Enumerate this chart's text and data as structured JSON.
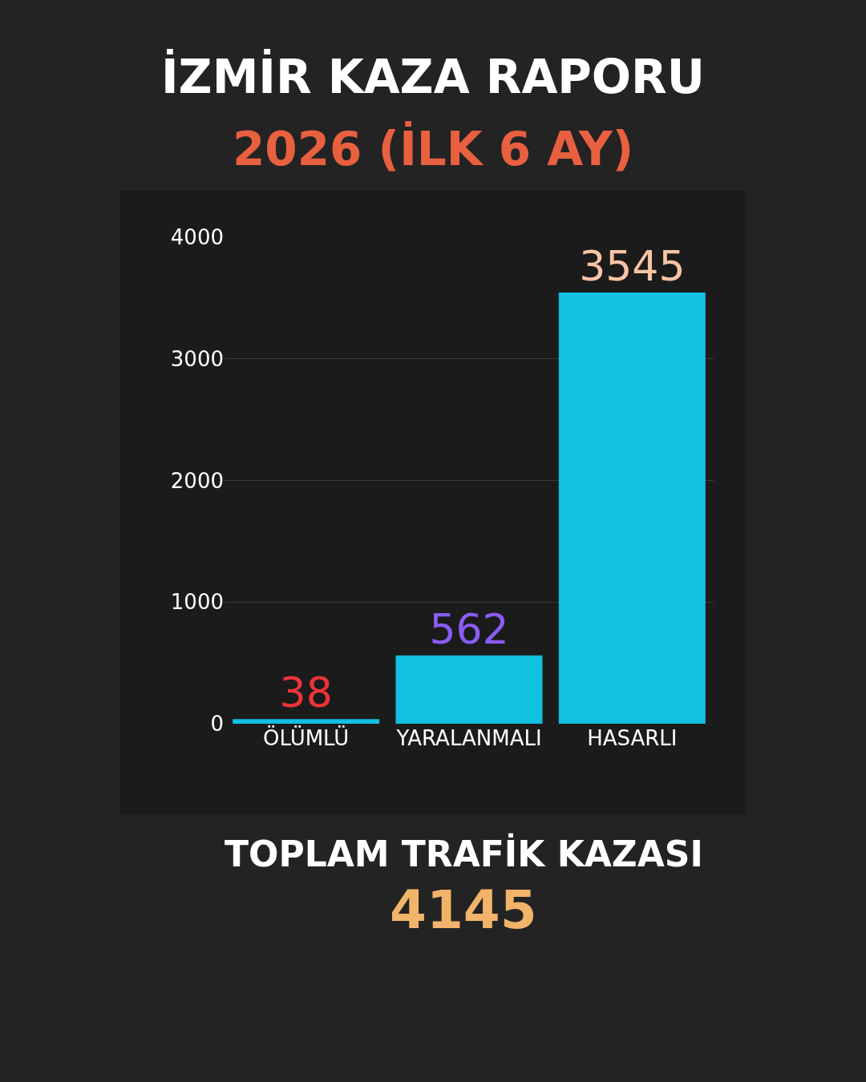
{
  "chart_data": {
    "type": "bar",
    "title": "İZMİR KAZA RAPORU",
    "subtitle": "2026 (İLK 6 AY)",
    "categories": [
      "ÖLÜMLÜ",
      "YARALANMALI",
      "HASARLI"
    ],
    "series": [
      {
        "color": "#12c0e0",
        "values": [
          38,
          562,
          3545
        ]
      }
    ],
    "ylim": [
      0,
      4000
    ],
    "yticks": [
      0,
      1000,
      2000,
      3000,
      4000
    ],
    "grid": "y",
    "data_labels": true,
    "legend": false,
    "annotations": [
      "TOPLAM TRAFİK KAZASI",
      "4145"
    ]
  }
}
